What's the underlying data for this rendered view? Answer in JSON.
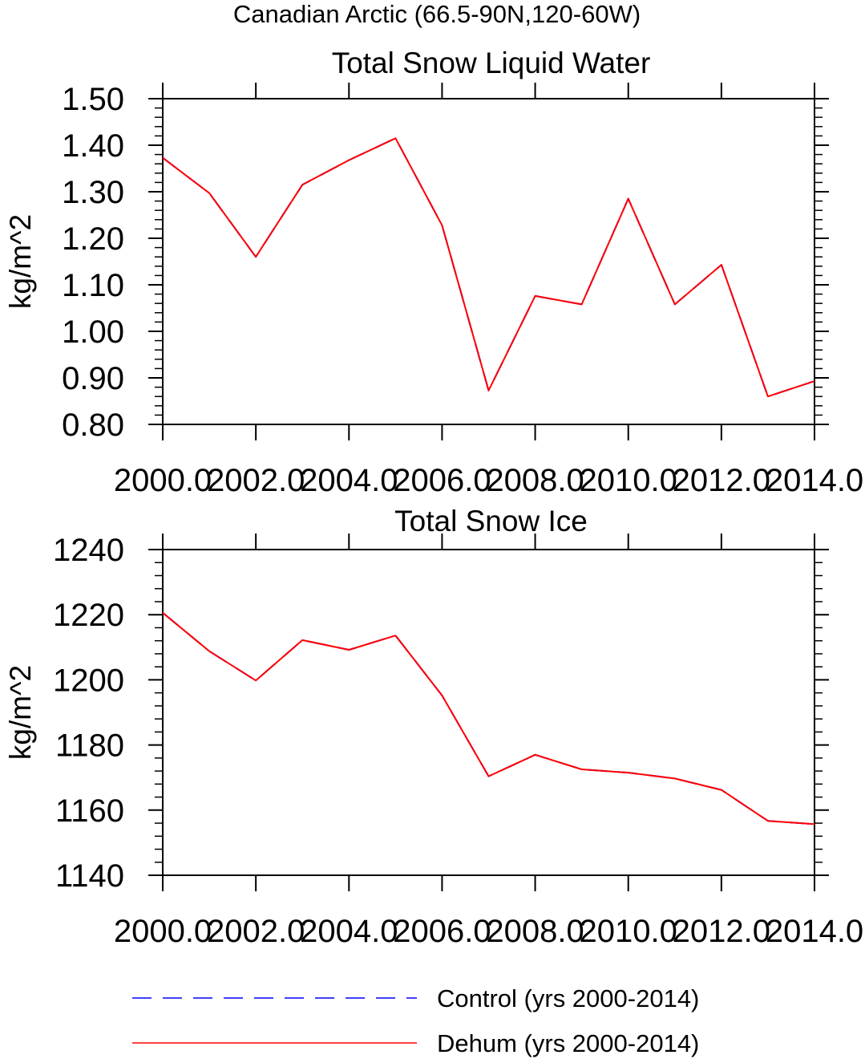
{
  "figure": {
    "title": "Canadian Arctic (66.5-90N,120-60W)"
  },
  "chart_data": [
    {
      "type": "line",
      "title": "Total Snow Liquid Water",
      "xlabel": "",
      "ylabel": "kg/m^2",
      "xlim": [
        2000,
        2014
      ],
      "ylim": [
        0.8,
        1.5
      ],
      "xticks": [
        2000,
        2002,
        2004,
        2006,
        2008,
        2010,
        2012,
        2014
      ],
      "xtick_labels": [
        "2000.0",
        "2002.0",
        "2004.0",
        "2006.0",
        "2008.0",
        "2010.0",
        "2012.0",
        "2014.0"
      ],
      "yticks": [
        0.8,
        0.9,
        1.0,
        1.1,
        1.2,
        1.3,
        1.4,
        1.5
      ],
      "ytick_labels": [
        "0.80",
        "0.90",
        "1.00",
        "1.10",
        "1.20",
        "1.30",
        "1.40",
        "1.50"
      ],
      "x": [
        2000,
        2001,
        2002,
        2003,
        2004,
        2005,
        2006,
        2007,
        2008,
        2009,
        2010,
        2011,
        2012,
        2013,
        2014
      ],
      "series": [
        {
          "name": "Control (yrs 2000-2014)",
          "color": "#0000ff",
          "dash": "dashed",
          "values": [
            1.373,
            1.297,
            1.16,
            1.315,
            1.368,
            1.415,
            1.228,
            0.873,
            1.076,
            1.058,
            1.285,
            1.058,
            1.143,
            0.86,
            0.893
          ]
        },
        {
          "name": "Dehum (yrs 2000-2014)",
          "color": "#ff0000",
          "dash": "solid",
          "values": [
            1.373,
            1.297,
            1.16,
            1.315,
            1.368,
            1.415,
            1.228,
            0.873,
            1.076,
            1.058,
            1.285,
            1.058,
            1.143,
            0.86,
            0.893
          ]
        }
      ]
    },
    {
      "type": "line",
      "title": "Total Snow Ice",
      "xlabel": "",
      "ylabel": "kg/m^2",
      "xlim": [
        2000,
        2014
      ],
      "ylim": [
        1140,
        1240
      ],
      "xticks": [
        2000,
        2002,
        2004,
        2006,
        2008,
        2010,
        2012,
        2014
      ],
      "xtick_labels": [
        "2000.0",
        "2002.0",
        "2004.0",
        "2006.0",
        "2008.0",
        "2010.0",
        "2012.0",
        "2014.0"
      ],
      "yticks": [
        1140,
        1160,
        1180,
        1200,
        1220,
        1240
      ],
      "ytick_labels": [
        "1140",
        "1160",
        "1180",
        "1200",
        "1220",
        "1240"
      ],
      "x": [
        2000,
        2001,
        2002,
        2003,
        2004,
        2005,
        2006,
        2007,
        2008,
        2009,
        2010,
        2011,
        2012,
        2013,
        2014
      ],
      "series": [
        {
          "name": "Control (yrs 2000-2014)",
          "color": "#0000ff",
          "dash": "dashed",
          "values": [
            1220.6,
            1208.8,
            1199.8,
            1212.2,
            1209.2,
            1213.6,
            1195.2,
            1170.4,
            1177.0,
            1172.5,
            1171.5,
            1169.7,
            1166.2,
            1156.7,
            1155.7
          ]
        },
        {
          "name": "Dehum (yrs 2000-2014)",
          "color": "#ff0000",
          "dash": "solid",
          "values": [
            1220.6,
            1208.8,
            1199.8,
            1212.2,
            1209.2,
            1213.6,
            1195.2,
            1170.4,
            1177.0,
            1172.5,
            1171.5,
            1169.7,
            1166.2,
            1156.7,
            1155.7
          ]
        }
      ]
    }
  ],
  "legend": {
    "placement": "bottom",
    "items": [
      {
        "label": "Control (yrs 2000-2014)",
        "color": "#0000ff",
        "dash": "dashed"
      },
      {
        "label": "Dehum (yrs 2000-2014)",
        "color": "#ff0000",
        "dash": "solid"
      }
    ]
  }
}
